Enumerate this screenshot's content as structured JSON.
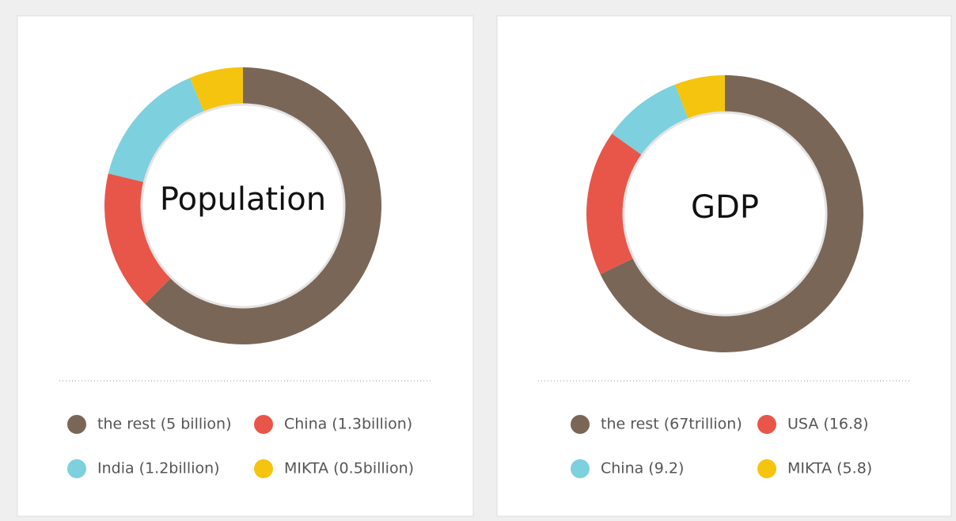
{
  "chart_data": [
    {
      "type": "donut",
      "title": "Population",
      "categories": [
        "the rest (5 billion)",
        "China (1.3billion)",
        "India (1.2billion)",
        "MIKTA (0.5billion)"
      ],
      "values": [
        5,
        1.3,
        1.2,
        0.5
      ],
      "colors": [
        "#7a6657",
        "#e8564a",
        "#7dd0de",
        "#f5c40f"
      ]
    },
    {
      "type": "donut",
      "title": "GDP",
      "categories": [
        "the rest (67trillion)",
        "USA (16.8)",
        "China (9.2)",
        "MIKTA (5.8)"
      ],
      "values": [
        67,
        16.8,
        9.2,
        5.8
      ],
      "colors": [
        "#7a6657",
        "#e8564a",
        "#7dd0de",
        "#f5c40f"
      ]
    }
  ]
}
